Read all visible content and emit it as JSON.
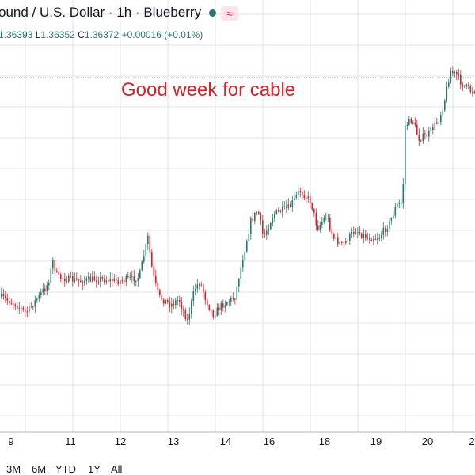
{
  "header": {
    "title": "ound",
    "sep1": " / ",
    "quote": "U.S. Dollar",
    "sep2": " · ",
    "interval": "1h",
    "sep3": " · ",
    "source": "Blueberry",
    "status_icon": "live-dot-icon",
    "indicator_icon": "wave-icon",
    "indicator_glyph": "≈"
  },
  "ohlc": {
    "o_value": "1.36393",
    "l_label": "L",
    "l_value": "1.36352",
    "c_label": "C",
    "c_value": "1.36372",
    "change": "+0.00016 (+0.01%)"
  },
  "annotation": "Good week for cable",
  "range_buttons": [
    "3M",
    "6M",
    "YTD",
    "1Y",
    "All"
  ],
  "colors": {
    "up": "#26786b",
    "down": "#d2232a",
    "grid": "#e0e3eb",
    "text": "#131722",
    "annotation": "#d2232a"
  },
  "chart_data": {
    "type": "candlestick",
    "interval": "1h",
    "x_tick_labels": [
      "9",
      "11",
      "12",
      "13",
      "14",
      "16",
      "18",
      "19",
      "20",
      "2"
    ],
    "annotations": [
      "Good week for cable"
    ],
    "grid": true,
    "last_bar": {
      "open": 1.36393,
      "low": 1.36352,
      "close": 1.36372,
      "change": 0.00016,
      "change_pct": 0.01
    }
  }
}
